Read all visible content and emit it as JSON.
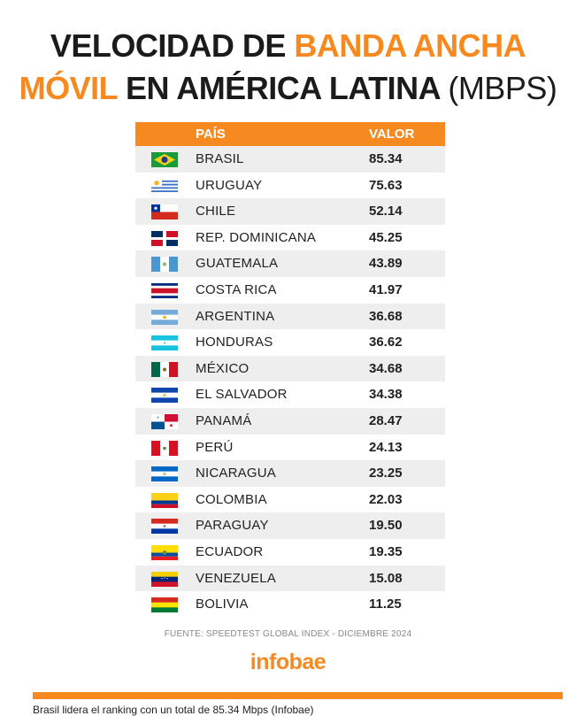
{
  "title": {
    "line1_part1": "VELOCIDAD DE ",
    "line1_part2": "BANDA ANCHA",
    "line2_part1": "MÓVIL",
    "line2_part2": " EN AMÉRICA LATINA ",
    "line2_part3": "(MBPS)"
  },
  "colors": {
    "accent": "#f6891f",
    "row_alt": "#eeeeee",
    "text": "#1b1b1b"
  },
  "chart_data": {
    "type": "table",
    "title": "VELOCIDAD DE BANDA ANCHA MÓVIL EN AMÉRICA LATINA (MBPS)",
    "columns": [
      "PAÍS",
      "VALOR"
    ],
    "rows": [
      {
        "country": "BRASIL",
        "value": "85.34",
        "flag": "brazil"
      },
      {
        "country": "URUGUAY",
        "value": "75.63",
        "flag": "uruguay"
      },
      {
        "country": "CHILE",
        "value": "52.14",
        "flag": "chile"
      },
      {
        "country": "REP. DOMINICANA",
        "value": "45.25",
        "flag": "dominican-republic"
      },
      {
        "country": "GUATEMALA",
        "value": "43.89",
        "flag": "guatemala"
      },
      {
        "country": "COSTA RICA",
        "value": "41.97",
        "flag": "costa-rica"
      },
      {
        "country": "ARGENTINA",
        "value": "36.68",
        "flag": "argentina"
      },
      {
        "country": "HONDURAS",
        "value": "36.62",
        "flag": "honduras"
      },
      {
        "country": "MÉXICO",
        "value": "34.68",
        "flag": "mexico"
      },
      {
        "country": "EL SALVADOR",
        "value": "34.38",
        "flag": "el-salvador"
      },
      {
        "country": "PANAMÁ",
        "value": "28.47",
        "flag": "panama"
      },
      {
        "country": "PERÚ",
        "value": "24.13",
        "flag": "peru"
      },
      {
        "country": "NICARAGUA",
        "value": "23.25",
        "flag": "nicaragua"
      },
      {
        "country": "COLOMBIA",
        "value": "22.03",
        "flag": "colombia"
      },
      {
        "country": "PARAGUAY",
        "value": "19.50",
        "flag": "paraguay"
      },
      {
        "country": "ECUADOR",
        "value": "19.35",
        "flag": "ecuador"
      },
      {
        "country": "VENEZUELA",
        "value": "15.08",
        "flag": "venezuela"
      },
      {
        "country": "BOLIVIA",
        "value": "11.25",
        "flag": "bolivia"
      }
    ]
  },
  "source": "FUENTE: SPEEDTEST GLOBAL INDEX - DICIEMBRE 2024",
  "brand": "infobae",
  "caption": "Brasil lidera el ranking con un total de 85.34 Mbps (Infobae)"
}
